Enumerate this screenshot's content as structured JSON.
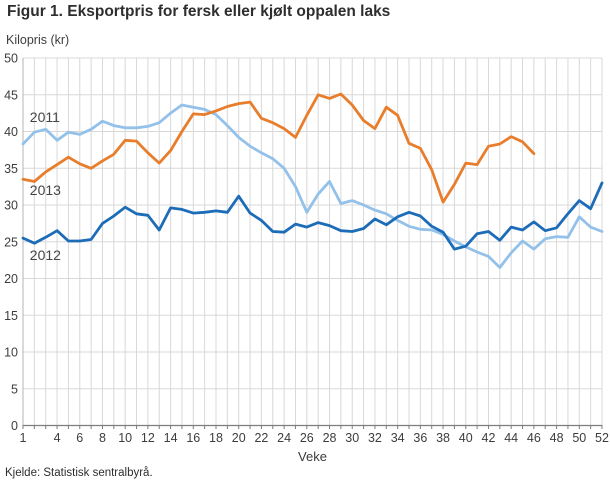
{
  "figure": {
    "title": "Figur 1. Eksportpris for fersk eller kjølt oppalen laks",
    "y_axis_title": "Kilopris (kr)",
    "x_axis_title": "Veke",
    "source": "Kjelde: Statistisk sentralbyrå."
  },
  "theme": {
    "grid_color": "#d8d8d8",
    "y_axis_color": "#b4b4b4",
    "x_axis_color": "#7d7d7d",
    "background": "#ffffff"
  },
  "chart_data": {
    "type": "line",
    "title": "Figur 1. Eksportpris for fersk eller kjølt oppalen laks",
    "xlabel": "Veke",
    "ylabel": "Kilopris (kr)",
    "xlim": [
      1,
      52
    ],
    "ylim": [
      0,
      50
    ],
    "grid": true,
    "legend_position": "inline-labels",
    "xticks": [
      1,
      4,
      6,
      8,
      10,
      12,
      14,
      16,
      18,
      20,
      22,
      24,
      26,
      28,
      30,
      32,
      34,
      36,
      38,
      40,
      42,
      44,
      46,
      48,
      50,
      52
    ],
    "yticks": [
      0,
      5,
      10,
      15,
      20,
      25,
      30,
      35,
      40,
      45,
      50
    ],
    "series": [
      {
        "name": "2011",
        "color": "#93c1ea",
        "start_week": 1,
        "values": [
          38.3,
          39.9,
          40.3,
          38.8,
          39.9,
          39.6,
          40.3,
          41.4,
          40.8,
          40.5,
          40.5,
          40.7,
          41.2,
          42.5,
          43.6,
          43.3,
          43.0,
          42.3,
          40.8,
          39.2,
          38.0,
          37.1,
          36.3,
          35.0,
          32.5,
          29.0,
          31.5,
          33.2,
          30.2,
          30.6,
          30.0,
          29.3,
          28.8,
          27.9,
          27.1,
          26.7,
          26.6,
          26.0,
          25.1,
          24.3,
          23.6,
          23.0,
          21.5,
          23.5,
          25.1,
          24.0,
          25.4,
          25.7,
          25.6,
          28.4,
          27.0,
          26.4
        ]
      },
      {
        "name": "2012",
        "color": "#1c6cb8",
        "start_week": 1,
        "values": [
          25.5,
          24.8,
          25.6,
          26.5,
          25.1,
          25.1,
          25.3,
          27.5,
          28.5,
          29.7,
          28.8,
          28.6,
          26.6,
          29.6,
          29.4,
          28.9,
          29.0,
          29.2,
          29.0,
          31.2,
          28.9,
          27.9,
          26.4,
          26.3,
          27.4,
          27.0,
          27.6,
          27.2,
          26.5,
          26.4,
          26.8,
          28.1,
          27.3,
          28.4,
          29.0,
          28.5,
          27.1,
          26.3,
          24.0,
          24.4,
          26.1,
          26.4,
          25.2,
          27.0,
          26.6,
          27.7,
          26.5,
          26.9,
          28.8,
          30.6,
          29.5,
          33.0
        ]
      },
      {
        "name": "2013",
        "color": "#e87d2c",
        "start_week": 1,
        "values": [
          33.5,
          33.2,
          34.5,
          35.5,
          36.5,
          35.6,
          35.0,
          36.0,
          36.9,
          38.8,
          38.7,
          37.1,
          35.7,
          37.4,
          40.0,
          42.4,
          42.3,
          42.8,
          43.4,
          43.8,
          44.0,
          41.8,
          41.2,
          40.4,
          39.2,
          42.2,
          45.0,
          44.5,
          45.1,
          43.6,
          41.5,
          40.4,
          43.3,
          42.2,
          38.4,
          37.7,
          34.8,
          30.4,
          32.8,
          35.7,
          35.5,
          38.0,
          38.3,
          39.3,
          38.6,
          37.0
        ]
      }
    ],
    "labels": [
      {
        "text": "2011",
        "week": 1.6,
        "value": 41.9
      },
      {
        "text": "2013",
        "week": 1.6,
        "value": 32.0
      },
      {
        "text": "2012",
        "week": 1.6,
        "value": 23.1
      }
    ]
  }
}
